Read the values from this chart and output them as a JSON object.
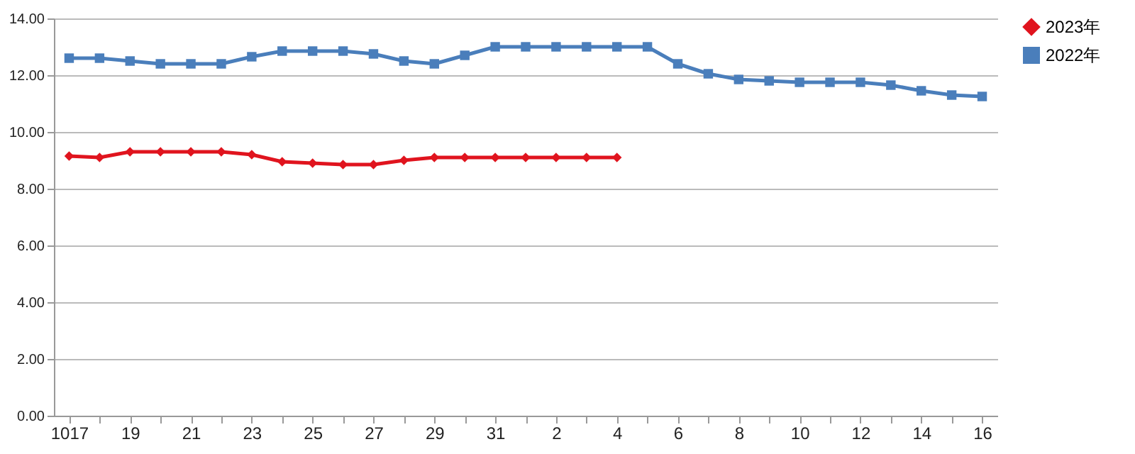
{
  "chart_data": {
    "type": "line",
    "categories": [
      "1017",
      null,
      "19",
      null,
      "21",
      null,
      "23",
      null,
      "25",
      null,
      "27",
      null,
      "29",
      null,
      "31",
      null,
      "2",
      null,
      "4",
      null,
      "6",
      null,
      "8",
      null,
      "10",
      null,
      "12",
      null,
      "14",
      null,
      "16"
    ],
    "series": [
      {
        "name": "2023年",
        "color": "#e0141e",
        "marker": "diamond",
        "values": [
          9.15,
          9.1,
          9.3,
          9.3,
          9.3,
          9.3,
          9.2,
          8.95,
          8.9,
          8.85,
          8.85,
          9.0,
          9.1,
          9.1,
          9.1,
          9.1,
          9.1,
          9.1,
          9.1,
          null,
          null,
          null,
          null,
          null,
          null,
          null,
          null,
          null,
          null,
          null,
          null
        ]
      },
      {
        "name": "2022年",
        "color": "#4a7ebb",
        "marker": "square",
        "values": [
          12.6,
          12.6,
          12.5,
          12.4,
          12.4,
          12.4,
          12.65,
          12.85,
          12.85,
          12.85,
          12.75,
          12.5,
          12.4,
          12.7,
          13.0,
          13.0,
          13.0,
          13.0,
          13.0,
          13.0,
          12.4,
          12.05,
          11.85,
          11.8,
          11.75,
          11.75,
          11.75,
          11.65,
          11.45,
          11.3,
          11.25
        ]
      }
    ],
    "ylim": [
      0,
      14
    ],
    "yticks": [
      {
        "value": 0,
        "label": "0.00"
      },
      {
        "value": 2,
        "label": "2.00"
      },
      {
        "value": 4,
        "label": "4.00"
      },
      {
        "value": 6,
        "label": "6.00"
      },
      {
        "value": 8,
        "label": "8.00"
      },
      {
        "value": 10,
        "label": "10.00"
      },
      {
        "value": 12,
        "label": "12.00"
      },
      {
        "value": 14,
        "label": "14.00"
      }
    ],
    "grid": "y",
    "legend": "right"
  }
}
